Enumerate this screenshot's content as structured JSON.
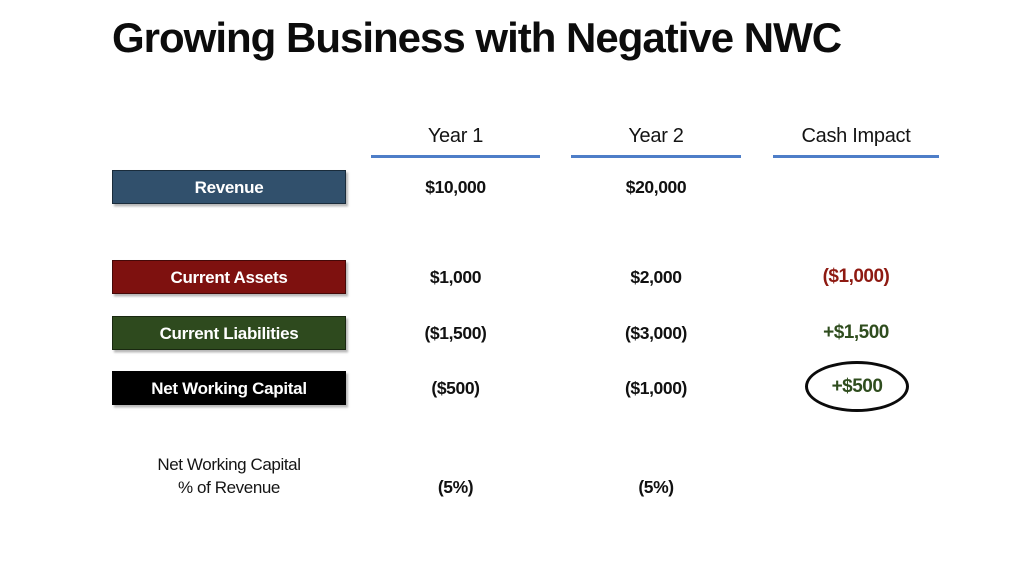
{
  "title": "Growing Business with Negative NWC",
  "columns": {
    "col1": "Year 1",
    "col2": "Year 2",
    "col3": "Cash Impact"
  },
  "rows": {
    "revenue": {
      "label": "Revenue",
      "year1": "$10,000",
      "year2": "$20,000",
      "cash_impact": ""
    },
    "current_assets": {
      "label": "Current Assets",
      "year1": "$1,000",
      "year2": "$2,000",
      "cash_impact": "($1,000)"
    },
    "current_liabilities": {
      "label": "Current Liabilities",
      "year1": "($1,500)",
      "year2": "($3,000)",
      "cash_impact": "+$1,500"
    },
    "net_working_capital": {
      "label": "Net Working Capital",
      "year1": "($500)",
      "year2": "($1,000)",
      "cash_impact": "+$500"
    },
    "nwc_pct": {
      "label_line1": "Net Working Capital",
      "label_line2": "% of Revenue",
      "year1": "(5%)",
      "year2": "(5%)"
    }
  },
  "colors": {
    "revenue_box": "#31506C",
    "current_assets_box": "#7E110F",
    "current_liabilities_box": "#2E4A1E",
    "net_working_capital_box": "#000000",
    "negative_cash_text": "#8E1A12",
    "positive_cash_text": "#2F4D1E",
    "header_underline": "#4E7EC8",
    "circle_outline": "#0b0b0b"
  }
}
